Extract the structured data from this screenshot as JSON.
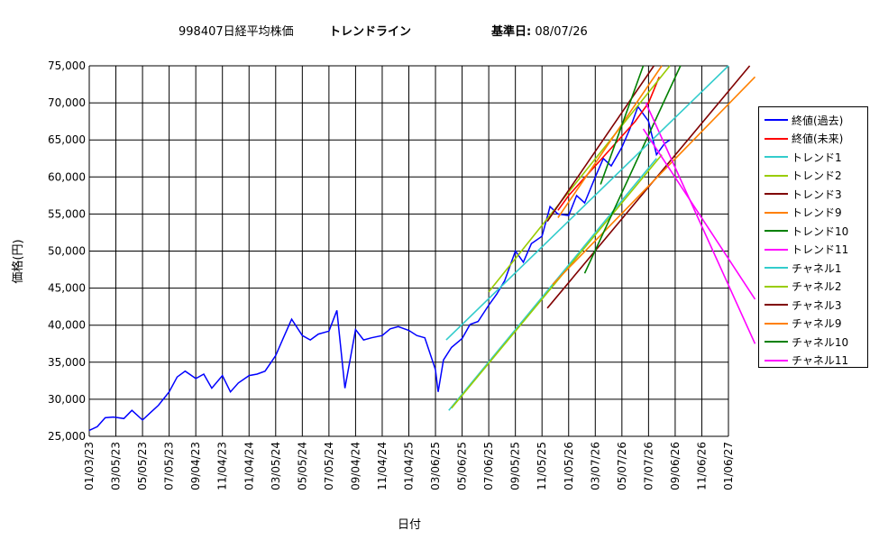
{
  "chart_data": {
    "type": "line",
    "title": "998407日経平均株価",
    "subtitle": "トレンドライン",
    "base_date_label": "基準日:",
    "base_date": "08/07/26",
    "xlabel": "日付",
    "ylabel": "価格(円)",
    "ylim": [
      25000,
      75000
    ],
    "yticks": [
      "25,000",
      "30,000",
      "35,000",
      "40,000",
      "45,000",
      "50,000",
      "55,000",
      "60,000",
      "65,000",
      "70,000",
      "75,000"
    ],
    "xticks": [
      "01/03/23",
      "03/05/23",
      "05/05/23",
      "07/05/23",
      "09/04/23",
      "11/04/23",
      "01/04/24",
      "03/05/24",
      "05/05/24",
      "07/05/24",
      "09/04/24",
      "11/04/24",
      "01/04/25",
      "03/06/25",
      "05/06/25",
      "07/06/25",
      "09/05/25",
      "11/05/25",
      "01/05/26",
      "03/07/26",
      "05/07/26",
      "07/07/26",
      "09/06/26",
      "11/06/26",
      "01/06/27"
    ],
    "grid": true,
    "legend_position": "right",
    "series": [
      {
        "name": "終値(過去)",
        "color": "#0000ff",
        "x": [
          0,
          0.3,
          0.6,
          0.9,
          1.3,
          1.6,
          2.0,
          2.3,
          2.6,
          3.0,
          3.3,
          3.6,
          4.0,
          4.3,
          4.6,
          5.0,
          5.3,
          5.6,
          6.0,
          6.3,
          6.6,
          7.0,
          7.3,
          7.6,
          8.0,
          8.3,
          8.6,
          9.0,
          9.3,
          9.6,
          10.0,
          10.3,
          10.6,
          11.0,
          11.3,
          11.6,
          12.0,
          12.3,
          12.6,
          13.0,
          13.1,
          13.3,
          13.6,
          14.0,
          14.3,
          14.6,
          15.0,
          15.3,
          15.6,
          16.0,
          16.3,
          16.6,
          17.0,
          17.3,
          17.6,
          18.0,
          18.3,
          18.6,
          19.0,
          19.3,
          19.6,
          20.0,
          20.3,
          20.6,
          21.0,
          21.3,
          21.6,
          21.8
        ],
        "values": [
          25800,
          26300,
          27500,
          27600,
          27400,
          28500,
          27200,
          28200,
          29200,
          31000,
          33000,
          33800,
          32800,
          33400,
          31500,
          33200,
          31000,
          32200,
          33200,
          33400,
          33800,
          35900,
          38400,
          40800,
          38600,
          38000,
          38800,
          39200,
          42000,
          31500,
          39400,
          38000,
          38300,
          38600,
          39500,
          39800,
          39300,
          38600,
          38300,
          34000,
          31000,
          35300,
          37000,
          38200,
          40100,
          40500,
          42700,
          44200,
          46000,
          50000,
          48500,
          51000,
          52000,
          56000,
          55000,
          54800,
          57500,
          56500,
          60000,
          62500,
          61500,
          64000,
          66500,
          69500,
          67500,
          63000,
          64500,
          65000
        ]
      },
      {
        "name": "終値(未来)",
        "color": "#ff0000",
        "x": [
          17.6,
          18.0,
          18.5,
          19.0,
          19.5,
          20.0,
          20.5,
          21.0,
          21.4
        ],
        "values": [
          55500,
          57500,
          59500,
          61500,
          63500,
          65500,
          67500,
          70000,
          73500
        ]
      },
      {
        "name": "トレンド1",
        "color": "#33cccc",
        "x": [
          13.5,
          21.3
        ],
        "values": [
          28500,
          62500
        ]
      },
      {
        "name": "トレンド2",
        "color": "#99cc00",
        "x": [
          13.6,
          21.5
        ],
        "values": [
          28800,
          63000
        ]
      },
      {
        "name": "トレンド3",
        "color": "#800000",
        "x": [
          17.2,
          24.8
        ],
        "values": [
          42300,
          75000
        ]
      },
      {
        "name": "トレンド9",
        "color": "#ff8000",
        "x": [
          17.4,
          25.0
        ],
        "values": [
          45500,
          73500
        ]
      },
      {
        "name": "トレンド10",
        "color": "#008000",
        "x": [
          18.6,
          22.2
        ],
        "values": [
          47000,
          75000
        ]
      },
      {
        "name": "トレンド11",
        "color": "#ff00ff",
        "x": [
          20.9,
          25.0
        ],
        "values": [
          70000,
          37500
        ]
      },
      {
        "name": "チャネル1",
        "color": "#33cccc",
        "x": [
          13.4,
          24.0
        ],
        "values": [
          38000,
          75000
        ]
      },
      {
        "name": "チャネル2",
        "color": "#99cc00",
        "x": [
          15.0,
          21.8
        ],
        "values": [
          44500,
          75000
        ]
      },
      {
        "name": "チャネル3",
        "color": "#800000",
        "x": [
          17.2,
          21.2
        ],
        "values": [
          54000,
          75000
        ]
      },
      {
        "name": "チャネル9",
        "color": "#ff8000",
        "x": [
          17.6,
          21.5
        ],
        "values": [
          54500,
          75000
        ]
      },
      {
        "name": "チャネル10",
        "color": "#008000",
        "x": [
          19.2,
          20.8
        ],
        "values": [
          59000,
          75000
        ]
      },
      {
        "name": "チャネル11",
        "color": "#ff00ff",
        "x": [
          20.8,
          25.0
        ],
        "values": [
          66500,
          43500
        ]
      }
    ]
  }
}
